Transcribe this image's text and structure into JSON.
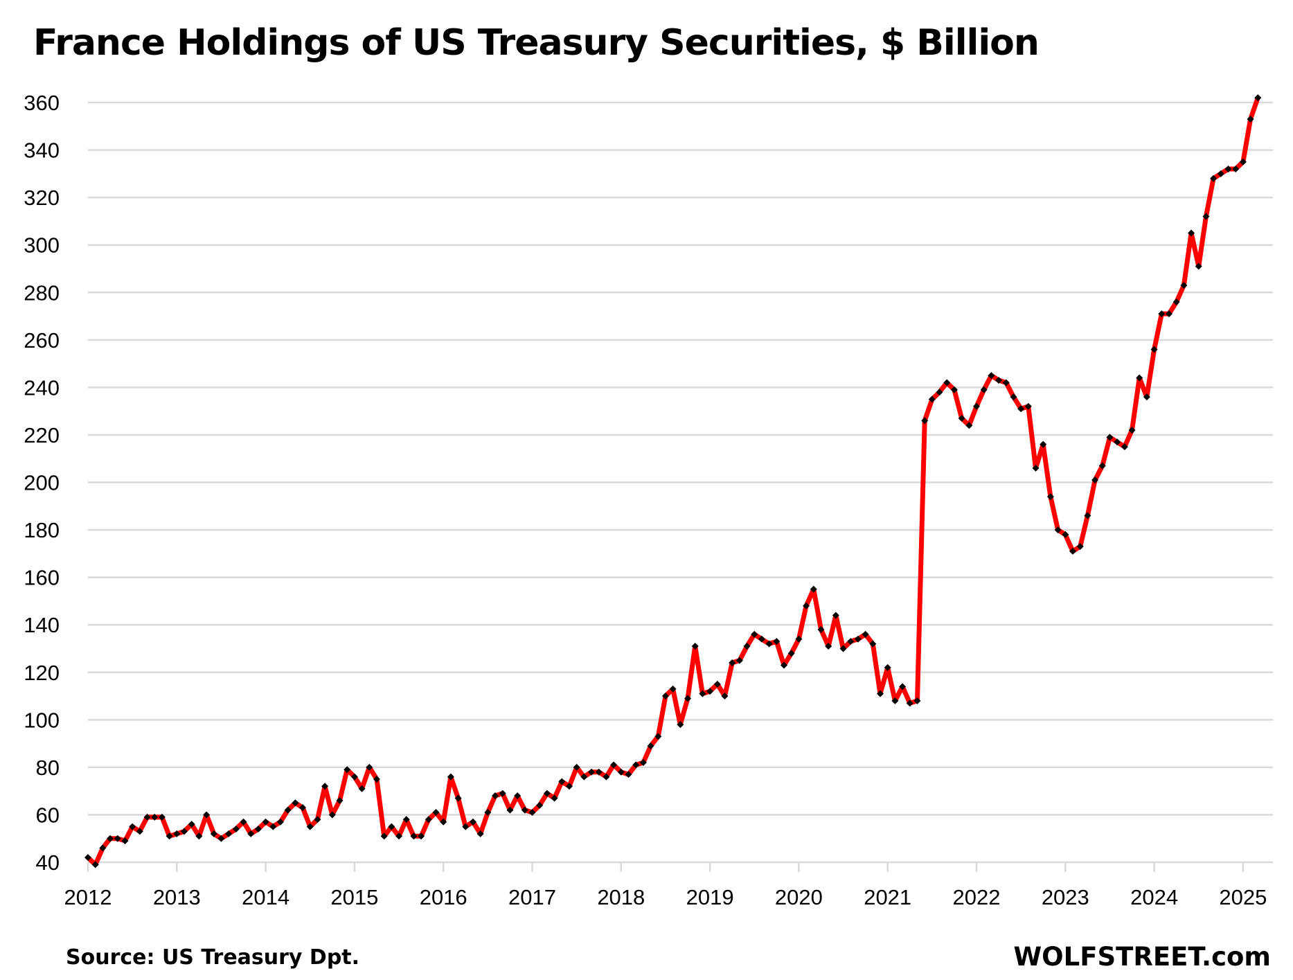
{
  "chart_data": {
    "type": "line",
    "title": "France Holdings of US Treasury Securities, $ Billion",
    "xlabel": "",
    "ylabel": "",
    "ylim": [
      40,
      360
    ],
    "yticks": [
      40,
      60,
      80,
      100,
      120,
      140,
      160,
      180,
      200,
      220,
      240,
      260,
      280,
      300,
      320,
      340,
      360
    ],
    "xticks": [
      "2012",
      "2013",
      "2014",
      "2015",
      "2016",
      "2017",
      "2018",
      "2019",
      "2020",
      "2021",
      "2022",
      "2023",
      "2024",
      "2025"
    ],
    "x_start": "2012-01",
    "frequency": "monthly",
    "grid": true,
    "legend": "none",
    "series": [
      {
        "name": "France holdings",
        "color": "#ff0000",
        "marker_color": "#000000",
        "values": [
          42,
          39,
          46,
          50,
          50,
          49,
          55,
          53,
          59,
          59,
          59,
          51,
          52,
          53,
          56,
          51,
          60,
          52,
          50,
          52,
          54,
          57,
          52,
          54,
          57,
          55,
          57,
          62,
          65,
          63,
          55,
          58,
          72,
          60,
          66,
          79,
          76,
          71,
          80,
          75,
          51,
          55,
          51,
          58,
          51,
          51,
          58,
          61,
          57,
          76,
          67,
          55,
          57,
          52,
          61,
          68,
          69,
          62,
          68,
          62,
          61,
          64,
          69,
          67,
          74,
          72,
          80,
          76,
          78,
          78,
          76,
          81,
          78,
          77,
          81,
          82,
          89,
          93,
          110,
          113,
          98,
          109,
          131,
          111,
          112,
          115,
          110,
          124,
          125,
          131,
          136,
          134,
          132,
          133,
          123,
          128,
          134,
          148,
          155,
          138,
          131,
          144,
          130,
          133,
          134,
          136,
          132,
          111,
          122,
          108,
          114,
          107,
          108,
          226,
          235,
          238,
          242,
          239,
          227,
          224,
          232,
          239,
          245,
          243,
          242,
          236,
          231,
          232,
          206,
          216,
          194,
          180,
          178,
          171,
          173,
          186,
          201,
          207,
          219,
          217,
          215,
          222,
          244,
          236,
          256,
          271,
          271,
          276,
          283,
          305,
          291,
          312,
          328,
          330,
          332,
          332,
          335,
          353,
          362
        ]
      }
    ]
  },
  "footer": {
    "source": "Source: US Treasury  Dpt.",
    "brand": "WOLFSTREET.com"
  }
}
